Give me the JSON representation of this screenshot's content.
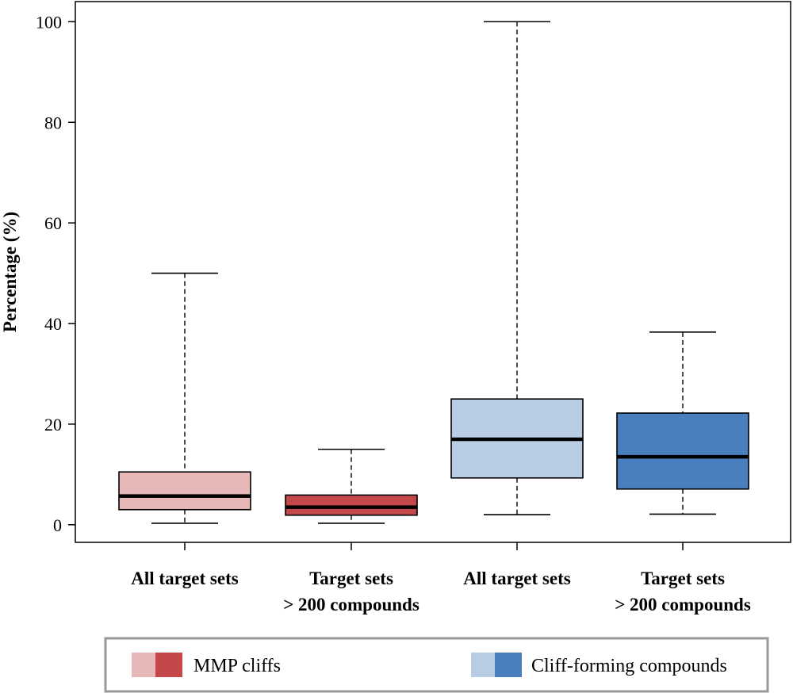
{
  "chart_data": {
    "type": "boxplot",
    "title": "",
    "xlabel": "",
    "ylabel": "Percentage (%)",
    "ylim": [
      -3.5,
      104
    ],
    "yticks": [
      0,
      20,
      40,
      60,
      80,
      100
    ],
    "ytick_labels": [
      "0",
      "20",
      "40",
      "60",
      "80",
      "100"
    ],
    "grid": false,
    "legend_position": "bottom",
    "categories": [
      {
        "line1": "All target sets",
        "line2": ""
      },
      {
        "line1": "Target sets",
        "line2": "> 200 compounds"
      },
      {
        "line1": "All target sets",
        "line2": ""
      },
      {
        "line1": "Target sets",
        "line2": "> 200 compounds"
      }
    ],
    "boxes": [
      {
        "group": "MMP cliffs",
        "category": "All target sets",
        "whisker_low": 0.3,
        "q1": 3.0,
        "median": 5.7,
        "q3": 10.5,
        "whisker_high": 50.0,
        "color": "#e8b8b8"
      },
      {
        "group": "MMP cliffs",
        "category": "Target sets > 200 compounds",
        "whisker_low": 0.3,
        "q1": 1.9,
        "median": 3.5,
        "q3": 5.9,
        "whisker_high": 15.0,
        "color": "#c4484a"
      },
      {
        "group": "Cliff-forming compounds",
        "category": "All target sets",
        "whisker_low": 2.0,
        "q1": 9.3,
        "median": 17.0,
        "q3": 25.0,
        "whisker_high": 100.0,
        "color": "#b8cce4"
      },
      {
        "group": "Cliff-forming compounds",
        "category": "Target sets > 200 compounds",
        "whisker_low": 2.1,
        "q1": 7.1,
        "median": 13.5,
        "q3": 22.2,
        "whisker_high": 38.3,
        "color": "#4a7fbf"
      }
    ],
    "legend": [
      {
        "label": "MMP cliffs",
        "colors": [
          "#e8b8b8",
          "#c4484a"
        ]
      },
      {
        "label": "Cliff-forming compounds",
        "colors": [
          "#b8cce4",
          "#4a7fbf"
        ]
      }
    ]
  }
}
